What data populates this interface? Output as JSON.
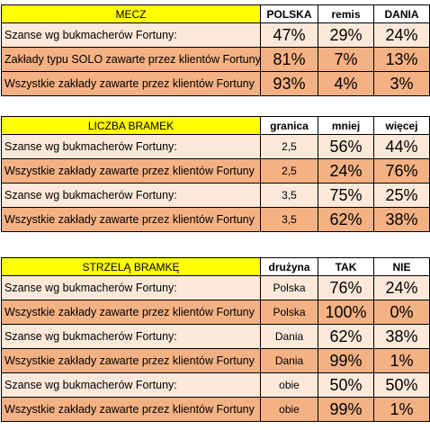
{
  "sections": [
    {
      "title": "MECZ",
      "columns": [
        "POLSKA",
        "remis",
        "DANIA"
      ],
      "rows": [
        {
          "label": "Szanse wg bukmacherów Fortuny:",
          "values": [
            "47%",
            "29%",
            "24%"
          ]
        },
        {
          "label": "Zakłady typu SOLO zawarte przez klientów Fortuny",
          "values": [
            "81%",
            "7%",
            "13%"
          ]
        },
        {
          "label": "Wszystkie zakłady zawarte przez klientów Fortuny",
          "values": [
            "93%",
            "4%",
            "3%"
          ]
        }
      ]
    },
    {
      "title": "LICZBA BRAMEK",
      "columns": [
        "granica",
        "mniej",
        "więcej"
      ],
      "rows": [
        {
          "label": "Szanse wg bukmacherów Fortuny:",
          "param": "2,5",
          "values": [
            "56%",
            "44%"
          ]
        },
        {
          "label": "Wszystkie zakłady zawarte przez klientów Fortuny",
          "param": "2,5",
          "values": [
            "24%",
            "76%"
          ]
        },
        {
          "label": "Szanse wg bukmacherów Fortuny:",
          "param": "3,5",
          "values": [
            "75%",
            "25%"
          ]
        },
        {
          "label": "Wszystkie zakłady zawarte przez klientów Fortuny",
          "param": "3,5",
          "values": [
            "62%",
            "38%"
          ]
        }
      ]
    },
    {
      "title": "STRZELĄ BRAMKĘ",
      "columns": [
        "drużyna",
        "TAK",
        "NIE"
      ],
      "rows": [
        {
          "label": "Szanse wg bukmacherów Fortuny:",
          "param": "Polska",
          "values": [
            "76%",
            "24%"
          ]
        },
        {
          "label": "Wszystkie zakłady zawarte przez klientów Fortuny",
          "param": "Polska",
          "values": [
            "100%",
            "0%"
          ]
        },
        {
          "label": "Szanse wg bukmacherów Fortuny:",
          "param": "Dania",
          "values": [
            "62%",
            "38%"
          ]
        },
        {
          "label": "Wszystkie zakłady zawarte przez klientów Fortuny",
          "param": "Dania",
          "values": [
            "99%",
            "1%"
          ]
        },
        {
          "label": "Szanse wg bukmacherów Fortuny:",
          "param": "obie",
          "values": [
            "50%",
            "50%"
          ]
        },
        {
          "label": "Wszystkie zakłady zawarte przez klientów Fortuny",
          "param": "obie",
          "values": [
            "99%",
            "1%"
          ]
        }
      ]
    }
  ],
  "colors": {
    "header_title": "#ffff00",
    "row_light": "#fde9d9",
    "row_dark": "#f4b183",
    "border": "#000000"
  }
}
